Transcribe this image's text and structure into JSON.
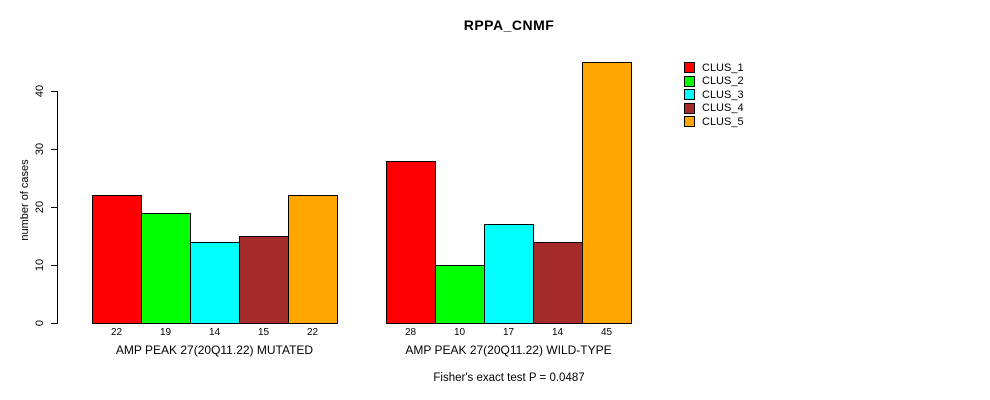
{
  "chart_data": {
    "type": "bar",
    "title": "RPPA_CNMF",
    "ylabel": "number of cases",
    "xlabel": "",
    "ylim": [
      0,
      45
    ],
    "yticks": [
      0,
      10,
      20,
      30,
      40
    ],
    "grid": false,
    "legend_position": "right",
    "series": [
      "CLUS_1",
      "CLUS_2",
      "CLUS_3",
      "CLUS_4",
      "CLUS_5"
    ],
    "colors": [
      "#FF0000",
      "#00FF00",
      "#00FFFF",
      "#A52A2A",
      "#FFA500"
    ],
    "groups": [
      {
        "label": "AMP PEAK 27(20Q11.22) MUTATED",
        "values": [
          22,
          19,
          14,
          15,
          22
        ]
      },
      {
        "label": "AMP PEAK 27(20Q11.22) WILD-TYPE",
        "values": [
          28,
          10,
          17,
          14,
          45
        ]
      }
    ],
    "annotation": "Fisher's exact test P = 0.0487"
  }
}
